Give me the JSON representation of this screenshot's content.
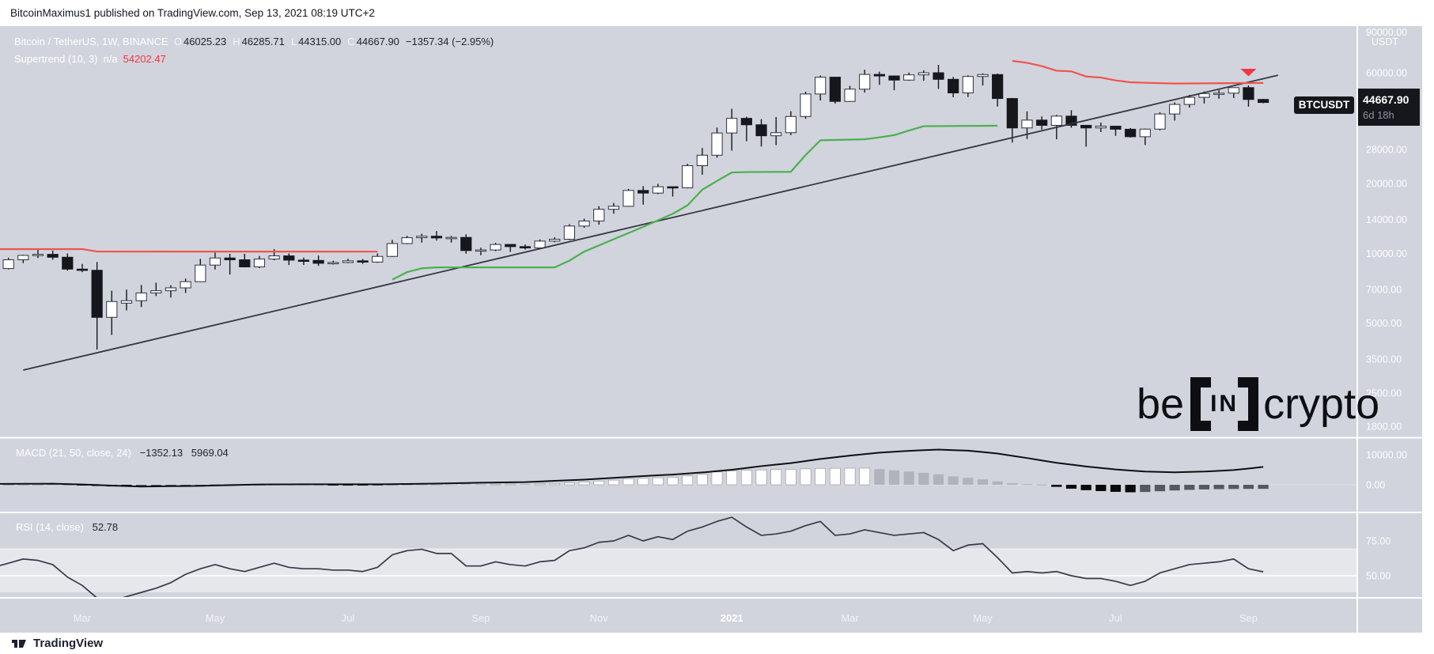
{
  "topbar": {
    "text": "BitcoinMaximus1 published on TradingView.com, Sep 13, 2021 08:19 UTC+2"
  },
  "footer": {
    "brand": "TradingView"
  },
  "watermark": {
    "left": "be",
    "mid": "IN",
    "right": "crypto"
  },
  "chart": {
    "header": {
      "title": "Bitcoin / TetherUS, 1W, BINANCE",
      "ohlc": [
        {
          "k": "O",
          "v": "46025.23"
        },
        {
          "k": "H",
          "v": "46285.71"
        },
        {
          "k": "L",
          "v": "44315.00"
        },
        {
          "k": "C",
          "v": "44667.90"
        }
      ],
      "change": "−1357.34 (−2.95%)",
      "supertrend": {
        "name": "Supertrend (10, 3)",
        "na": "n/a",
        "value": "54202.47"
      }
    },
    "macd_legend": {
      "label": "MACD (21, 50, close, 24)",
      "v1": "−1352.13",
      "v2": "5969.04"
    },
    "rsi_legend": {
      "label": "RSI (14, close)",
      "value": "52.78"
    },
    "price_label": {
      "symbol": "BTCUSDT",
      "price": "44667.90",
      "countdown": "6d 18h"
    },
    "axes": {
      "price_unit": "USDT",
      "price_ticks": [
        {
          "label": "90000.00",
          "value": 90000
        },
        {
          "label": "60000.00",
          "value": 60000
        },
        {
          "label": "28000.00",
          "value": 28000
        },
        {
          "label": "20000.00",
          "value": 20000
        },
        {
          "label": "14000.00",
          "value": 14000
        },
        {
          "label": "10000.00",
          "value": 10000
        },
        {
          "label": "7000.00",
          "value": 7000
        },
        {
          "label": "5000.00",
          "value": 5000
        },
        {
          "label": "3500.00",
          "value": 3500
        },
        {
          "label": "2500.00",
          "value": 2500
        },
        {
          "label": "1800.00",
          "value": 1800
        }
      ],
      "macd_ticks": [
        {
          "label": "10000.00",
          "value": 10000
        },
        {
          "label": "0.00",
          "value": 0
        }
      ],
      "rsi_ticks": [
        {
          "label": "75.00",
          "value": 75
        },
        {
          "label": "50.00",
          "value": 50
        }
      ],
      "time_ticks": [
        {
          "label": "Mar",
          "week": 6,
          "bold": false
        },
        {
          "label": "May",
          "week": 15,
          "bold": false
        },
        {
          "label": "Jul",
          "week": 24,
          "bold": false
        },
        {
          "label": "Sep",
          "week": 33,
          "bold": false
        },
        {
          "label": "Nov",
          "week": 41,
          "bold": false
        },
        {
          "label": "2021",
          "week": 50,
          "bold": true
        },
        {
          "label": "Mar",
          "week": 58,
          "bold": false
        },
        {
          "label": "May",
          "week": 67,
          "bold": false
        },
        {
          "label": "Jul",
          "week": 76,
          "bold": false
        },
        {
          "label": "Sep",
          "week": 85,
          "bold": false
        }
      ]
    },
    "colors": {
      "chart_bg": "#d1d4dc",
      "divider": "#ffffff",
      "axis_text": "#fdfdfe",
      "candle_up": "#ffffff",
      "candle_up_border": "#2e3240",
      "candle_down": "#16171d",
      "wick": "#16171d",
      "supertrend_red": "#ef5350",
      "supertrend_green": "#4caf50",
      "sell_marker": "#f23645",
      "trendline": "#33363f",
      "macd_line": "#0e0f12",
      "hist_pos_rising": "#ffffff",
      "hist_pos_falling": "#b0b3bc",
      "hist_neg_falling": "#0a0a0c",
      "hist_neg_rising": "#55585f",
      "rsi_line": "#363a46",
      "rsi_band": "rgba(255,255,255,0.45)",
      "label_box_bg": "#16171d",
      "label_box_text": "#ffffff",
      "countdown_text": "#8f929c"
    }
  },
  "chart_data": {
    "type": "candlestick",
    "symbol": "BTCUSDT",
    "timeframe": "1W",
    "first_week_start": "2020-01-20",
    "price_scale": "log",
    "candles": [
      [
        8700,
        9200,
        8250,
        8600
      ],
      [
        8600,
        9580,
        8520,
        9380
      ],
      [
        9380,
        9860,
        9080,
        9800
      ],
      [
        9800,
        10500,
        9550,
        9900
      ],
      [
        9900,
        10280,
        9380,
        9620
      ],
      [
        9620,
        9985,
        8420,
        8550
      ],
      [
        8550,
        9000,
        8300,
        8450
      ],
      [
        8450,
        9170,
        3850,
        5300
      ],
      [
        5300,
        6900,
        4450,
        6200
      ],
      [
        6100,
        6980,
        5680,
        6250
      ],
      [
        6250,
        7300,
        5870,
        6750
      ],
      [
        6750,
        7470,
        6550,
        6900
      ],
      [
        6900,
        7290,
        6450,
        7100
      ],
      [
        7100,
        7780,
        6750,
        7550
      ],
      [
        7550,
        9470,
        7520,
        8900
      ],
      [
        8900,
        10070,
        8520,
        9550
      ],
      [
        9550,
        9950,
        8100,
        9380
      ],
      [
        9380,
        9950,
        8700,
        8740
      ],
      [
        8740,
        9740,
        8640,
        9450
      ],
      [
        9450,
        10430,
        9330,
        9750
      ],
      [
        9750,
        9990,
        8900,
        9350
      ],
      [
        9350,
        9590,
        8910,
        9320
      ],
      [
        9320,
        9780,
        8830,
        9060
      ],
      [
        9060,
        9290,
        8950,
        9130
      ],
      [
        9130,
        9470,
        9070,
        9280
      ],
      [
        9280,
        9450,
        9000,
        9170
      ],
      [
        9170,
        9990,
        9100,
        9700
      ],
      [
        9700,
        11420,
        9650,
        11020
      ],
      [
        11020,
        11900,
        10950,
        11680
      ],
      [
        11680,
        12150,
        11120,
        11850
      ],
      [
        11850,
        12470,
        11350,
        11650
      ],
      [
        11650,
        11880,
        11130,
        11710
      ],
      [
        11710,
        12080,
        9960,
        10280
      ],
      [
        10280,
        10580,
        9820,
        10340
      ],
      [
        10340,
        11100,
        10220,
        10920
      ],
      [
        10920,
        10950,
        10140,
        10690
      ],
      [
        10690,
        10920,
        10380,
        10550
      ],
      [
        10550,
        11480,
        10490,
        11290
      ],
      [
        11290,
        11730,
        11160,
        11500
      ],
      [
        11500,
        13360,
        11400,
        13110
      ],
      [
        13110,
        14100,
        12880,
        13780
      ],
      [
        13780,
        15960,
        13290,
        15480
      ],
      [
        15480,
        16480,
        14820,
        15950
      ],
      [
        15950,
        18960,
        15860,
        18660
      ],
      [
        18660,
        19480,
        16200,
        18180
      ],
      [
        18180,
        19920,
        17980,
        19360
      ],
      [
        19360,
        19420,
        17570,
        19150
      ],
      [
        19150,
        24300,
        19050,
        23860
      ],
      [
        23860,
        28420,
        21810,
        26470
      ],
      [
        26470,
        34800,
        25830,
        33000
      ],
      [
        33000,
        41950,
        27700,
        38150
      ],
      [
        38150,
        38780,
        30400,
        35800
      ],
      [
        35800,
        37850,
        28850,
        32100
      ],
      [
        32100,
        38640,
        29250,
        33100
      ],
      [
        33100,
        40950,
        32300,
        38870
      ],
      [
        38870,
        49700,
        37990,
        48580
      ],
      [
        48580,
        58350,
        45570,
        57400
      ],
      [
        57400,
        57560,
        44150,
        45140
      ],
      [
        45140,
        52640,
        44950,
        50970
      ],
      [
        50970,
        61800,
        49270,
        59000
      ],
      [
        59000,
        60600,
        53200,
        58100
      ],
      [
        58100,
        58400,
        50430,
        55780
      ],
      [
        55780,
        60080,
        55450,
        58750
      ],
      [
        58750,
        61500,
        55400,
        59980
      ],
      [
        59980,
        64850,
        51100,
        56200
      ],
      [
        56200,
        57560,
        47040,
        49100
      ],
      [
        49100,
        58480,
        47140,
        57800
      ],
      [
        57800,
        59590,
        52900,
        58900
      ],
      [
        58900,
        59500,
        42900,
        46450
      ],
      [
        46450,
        46700,
        30000,
        34700
      ],
      [
        34700,
        40900,
        31100,
        37500
      ],
      [
        37500,
        38900,
        34150,
        35600
      ],
      [
        35600,
        39480,
        31000,
        39000
      ],
      [
        39000,
        41350,
        34750,
        35600
      ],
      [
        35600,
        35750,
        28800,
        34700
      ],
      [
        34700,
        36600,
        33300,
        35300
      ],
      [
        35300,
        35350,
        32100,
        34250
      ],
      [
        34250,
        34650,
        31550,
        31800
      ],
      [
        31800,
        34500,
        29300,
        34290
      ],
      [
        34290,
        40550,
        33880,
        39850
      ],
      [
        39850,
        44700,
        37330,
        43800
      ],
      [
        43800,
        48150,
        42440,
        47000
      ],
      [
        47000,
        49800,
        44210,
        48800
      ],
      [
        48800,
        50500,
        46350,
        49000
      ],
      [
        49000,
        51900,
        46700,
        51750
      ],
      [
        51750,
        52920,
        42830,
        46025.23
      ],
      [
        46025.23,
        46285.71,
        44315,
        44667.9
      ]
    ],
    "supertrend_red_early": [
      [
        0,
        10430
      ],
      [
        6,
        10430
      ],
      [
        7,
        10180
      ],
      [
        26,
        10170
      ]
    ],
    "supertrend_green": [
      [
        27,
        7700
      ],
      [
        28,
        8300
      ],
      [
        29,
        8620
      ],
      [
        30,
        8700
      ],
      [
        38,
        8700
      ],
      [
        39,
        9300
      ],
      [
        40,
        10170
      ],
      [
        42,
        11500
      ],
      [
        44,
        13000
      ],
      [
        46,
        14800
      ],
      [
        47,
        16100
      ],
      [
        48,
        18800
      ],
      [
        49,
        20500
      ],
      [
        50,
        22300
      ],
      [
        51,
        22400
      ],
      [
        54,
        22450
      ],
      [
        55,
        26500
      ],
      [
        56,
        30700
      ],
      [
        59,
        31000
      ],
      [
        60,
        31600
      ],
      [
        61,
        32300
      ],
      [
        62,
        33800
      ],
      [
        63,
        35300
      ],
      [
        68,
        35450
      ]
    ],
    "supertrend_red_late": [
      [
        69,
        67500
      ],
      [
        70,
        66200
      ],
      [
        71,
        64100
      ],
      [
        72,
        61200
      ],
      [
        73,
        60800
      ],
      [
        74,
        57800
      ],
      [
        75,
        57200
      ],
      [
        76,
        55600
      ],
      [
        77,
        54600
      ],
      [
        78,
        54300
      ],
      [
        80,
        53900
      ],
      [
        82,
        54000
      ],
      [
        84,
        54100
      ],
      [
        86,
        54202.47
      ]
    ],
    "sell_marker_week": 85,
    "trendline": {
      "week_a": 2,
      "price_a": 3140,
      "week_b": 87,
      "price_b": 58500
    },
    "macd_hist": [
      150,
      180,
      200,
      210,
      150,
      0,
      -120,
      -400,
      -550,
      -650,
      -600,
      -500,
      -400,
      -280,
      -100,
      60,
      120,
      80,
      100,
      150,
      100,
      60,
      0,
      -60,
      -80,
      -100,
      -60,
      80,
      220,
      350,
      400,
      420,
      300,
      200,
      250,
      280,
      260,
      320,
      420,
      650,
      900,
      1250,
      1550,
      1950,
      2150,
      2350,
      2450,
      2950,
      3450,
      4250,
      4600,
      4800,
      4950,
      5050,
      5150,
      5300,
      5450,
      5500,
      5520,
      5530,
      5200,
      4800,
      4400,
      4000,
      3500,
      2800,
      2300,
      1800,
      1100,
      500,
      250,
      100,
      -700,
      -1300,
      -1800,
      -2100,
      -2350,
      -2500,
      -2400,
      -2150,
      -1900,
      -1700,
      -1550,
      -1450,
      -1400,
      -1370,
      -1352.13
    ],
    "macd_line": [
      [
        0,
        300
      ],
      [
        4,
        350
      ],
      [
        6,
        100
      ],
      [
        10,
        -600
      ],
      [
        14,
        -350
      ],
      [
        18,
        100
      ],
      [
        22,
        180
      ],
      [
        26,
        150
      ],
      [
        30,
        400
      ],
      [
        33,
        700
      ],
      [
        36,
        900
      ],
      [
        38,
        1300
      ],
      [
        40,
        1700
      ],
      [
        42,
        2300
      ],
      [
        44,
        2900
      ],
      [
        46,
        3400
      ],
      [
        48,
        4100
      ],
      [
        50,
        5000
      ],
      [
        52,
        6200
      ],
      [
        54,
        7200
      ],
      [
        56,
        8600
      ],
      [
        58,
        9700
      ],
      [
        60,
        10700
      ],
      [
        62,
        11300
      ],
      [
        64,
        11700
      ],
      [
        66,
        11350
      ],
      [
        68,
        10400
      ],
      [
        70,
        8900
      ],
      [
        72,
        7300
      ],
      [
        74,
        6100
      ],
      [
        76,
        5100
      ],
      [
        78,
        4400
      ],
      [
        80,
        4150
      ],
      [
        82,
        4400
      ],
      [
        84,
        4900
      ],
      [
        85,
        5400
      ],
      [
        86,
        5969.04
      ]
    ],
    "rsi": [
      56,
      59,
      62,
      61,
      58,
      49,
      43,
      34,
      32,
      35,
      38,
      41,
      45,
      51,
      55,
      58,
      55,
      53,
      56,
      59,
      56,
      55,
      55,
      54,
      54,
      53,
      56,
      65,
      68,
      69,
      66,
      66,
      57,
      57,
      60,
      58,
      57,
      60,
      61,
      68,
      70,
      74,
      75,
      79,
      75,
      78,
      76,
      82,
      85,
      89,
      92,
      85,
      79,
      80,
      82,
      86,
      89,
      79,
      80,
      83,
      81,
      79,
      80,
      81,
      76,
      68,
      72,
      73,
      63,
      52,
      53,
      52,
      53,
      50,
      48,
      48,
      46,
      43,
      46,
      52,
      55,
      58,
      59,
      60,
      62,
      55,
      52.78
    ]
  }
}
